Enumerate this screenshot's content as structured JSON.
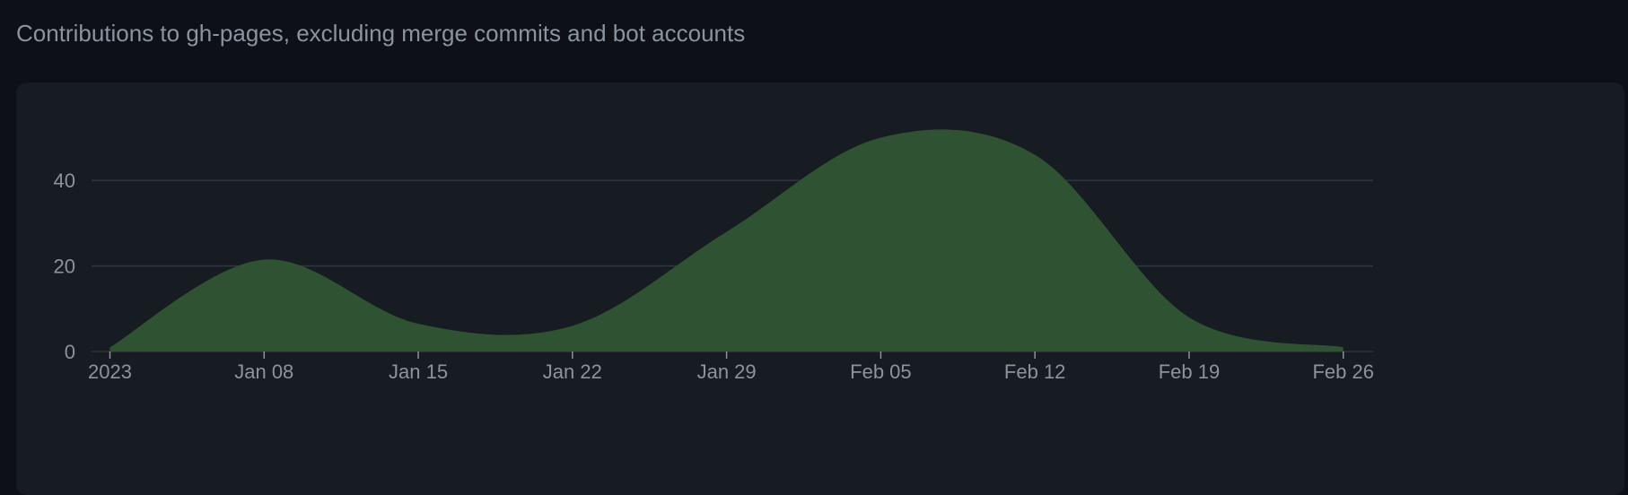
{
  "header": {
    "caption": "Contributions to gh-pages, excluding merge commits and bot accounts"
  },
  "colors": {
    "background": "#0d1117",
    "panel": "#171b22",
    "area_fill": "#2e5232",
    "grid": "#30363d",
    "text": "#8b949e"
  },
  "chart_data": {
    "type": "area",
    "x_ticks": [
      "2023",
      "Jan 08",
      "Jan 15",
      "Jan 22",
      "Jan 29",
      "Feb 05",
      "Feb 12",
      "Feb 19",
      "Feb 26"
    ],
    "y_ticks": [
      "0",
      "20",
      "40"
    ],
    "ylim": [
      0,
      60
    ],
    "grid": true,
    "series": [
      {
        "values": [
          {
            "x": "2023-01-01",
            "y": 1
          },
          {
            "x": "2023-01-08",
            "y": 21.5
          },
          {
            "x": "2023-01-15",
            "y": 6.5
          },
          {
            "x": "2023-01-22",
            "y": 6
          },
          {
            "x": "2023-01-29",
            "y": 28
          },
          {
            "x": "2023-02-05",
            "y": 50
          },
          {
            "x": "2023-02-12",
            "y": 46
          },
          {
            "x": "2023-02-19",
            "y": 8
          },
          {
            "x": "2023-02-26",
            "y": 1
          }
        ]
      }
    ]
  }
}
